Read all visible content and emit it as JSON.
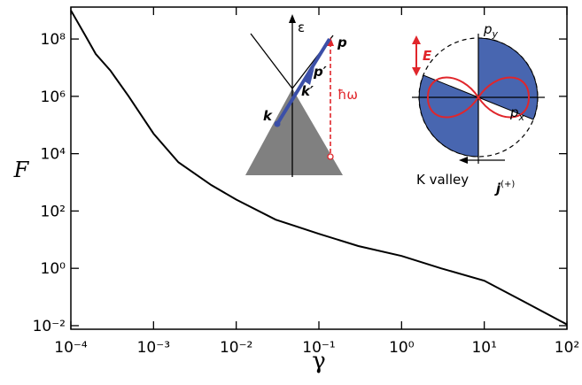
{
  "chart_data": {
    "type": "line",
    "xlabel": "γ",
    "ylabel": "F",
    "xscale": "log",
    "yscale": "log",
    "color": "#000000",
    "x": [
      0.0001,
      0.00015,
      0.0002,
      0.0003,
      0.0005,
      0.001,
      0.002,
      0.005,
      0.01,
      0.03,
      0.1,
      0.3,
      1,
      3,
      10,
      30,
      100
    ],
    "values": [
      1000000000,
      130000000,
      30000000,
      8000000,
      1000000,
      50000,
      5000,
      800,
      250,
      50,
      16,
      6,
      2.7,
      1,
      0.37,
      0.07,
      0.011
    ],
    "xlim": [
      0.0001,
      100
    ],
    "ylim": [
      0.0075,
      1300000000
    ],
    "xticks": [
      {
        "value": 0.0001,
        "label": "10⁻⁴"
      },
      {
        "value": 0.001,
        "label": "10⁻³"
      },
      {
        "value": 0.01,
        "label": "10⁻²"
      },
      {
        "value": 0.1,
        "label": "10⁻¹"
      },
      {
        "value": 1,
        "label": "10⁰"
      },
      {
        "value": 10,
        "label": "10¹"
      },
      {
        "value": 100,
        "label": "10²"
      }
    ],
    "yticks": [
      {
        "value": 0.01,
        "label": "10⁻²"
      },
      {
        "value": 1,
        "label": "10⁰"
      },
      {
        "value": 100,
        "label": "10²"
      },
      {
        "value": 10000,
        "label": "10⁴"
      },
      {
        "value": 1000000,
        "label": "10⁶"
      },
      {
        "value": 100000000,
        "label": "10⁸"
      }
    ],
    "annotations": [
      {
        "text": "ε"
      },
      {
        "text": "p"
      },
      {
        "text": "p′"
      },
      {
        "text": "k′"
      },
      {
        "text": "k"
      },
      {
        "text": "ħω"
      },
      {
        "text": "E"
      },
      {
        "text": "p",
        "sub": "y"
      },
      {
        "text": "p",
        "sub": "x"
      },
      {
        "text": "K valley"
      },
      {
        "text": "j",
        "sup": "(+)"
      }
    ]
  }
}
